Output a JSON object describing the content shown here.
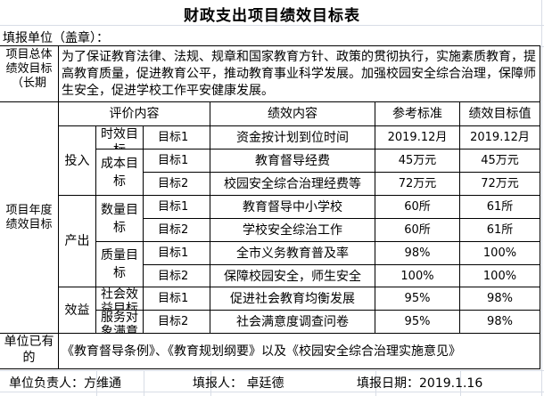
{
  "title": "财政支出项目绩效目标表",
  "fill_unit_label": "填报单位（盖章）：",
  "overall": {
    "label": "项目总体绩效目标（长期",
    "text": "为了保证教育法律、法规、规章和国家教育方针、政策的贯彻执行，实施素质教育，提高教育质量，促进教育公平，推动教育事业科学发展。加强校园安全综合治理，保障师生安全，促进学校工作平安健康发展。"
  },
  "annual": {
    "label": "项目年度 绩效目标",
    "headers": {
      "eval": "评价内容",
      "content": "绩效内容",
      "reference": "参考标准",
      "target": "绩效目标值"
    },
    "groups": [
      {
        "name": "投入",
        "subs": [
          {
            "name": "时效目标",
            "rows": [
              {
                "goal": "目标1",
                "content": "资金按计划到位时间",
                "reference": "2019.12月",
                "target": "2019.12月"
              }
            ]
          },
          {
            "name": "成本目标",
            "rows": [
              {
                "goal": "目标1",
                "content": "教育督导经费",
                "reference": "45万元",
                "target": "45万元"
              },
              {
                "goal": "目标2",
                "content": "校园安全综合治理经费等",
                "reference": "72万元",
                "target": "72万元"
              }
            ]
          }
        ]
      },
      {
        "name": "产出",
        "subs": [
          {
            "name": "数量目标",
            "rows": [
              {
                "goal": "目标1",
                "content": "教育督导中小学校",
                "reference": "60所",
                "target": "61所"
              },
              {
                "goal": "目标2",
                "content": "学校安全综治工作",
                "reference": "60所",
                "target": "61所"
              }
            ]
          },
          {
            "name": "质量目标",
            "rows": [
              {
                "goal": "目标1",
                "content": "全市义务教育普及率",
                "reference": "98%",
                "target": "100%"
              },
              {
                "goal": "目标2",
                "content": "保障校园安全，师生安全",
                "reference": "100%",
                "target": "100%"
              }
            ]
          }
        ]
      },
      {
        "name": "效益",
        "subs": [
          {
            "name": "社会效益目标",
            "rows": [
              {
                "goal": "目标1",
                "content": "促进社会教育均衡发展",
                "reference": "95%",
                "target": "98%"
              }
            ]
          },
          {
            "name": "服务对象满意",
            "rows": [
              {
                "goal": "目标2",
                "content": "社会满意度调查问卷",
                "reference": "95%",
                "target": "98%"
              }
            ]
          }
        ]
      }
    ]
  },
  "existing": {
    "label": "单位已有的",
    "text": "《教育督导条例》、《教育规划纲要》以及《校园安全综合治理实施意见》"
  },
  "footer": {
    "responsible": "单位负责人：方维通",
    "filler": "填报人：  卓廷德",
    "date": "填报日期：2019.1.16"
  }
}
